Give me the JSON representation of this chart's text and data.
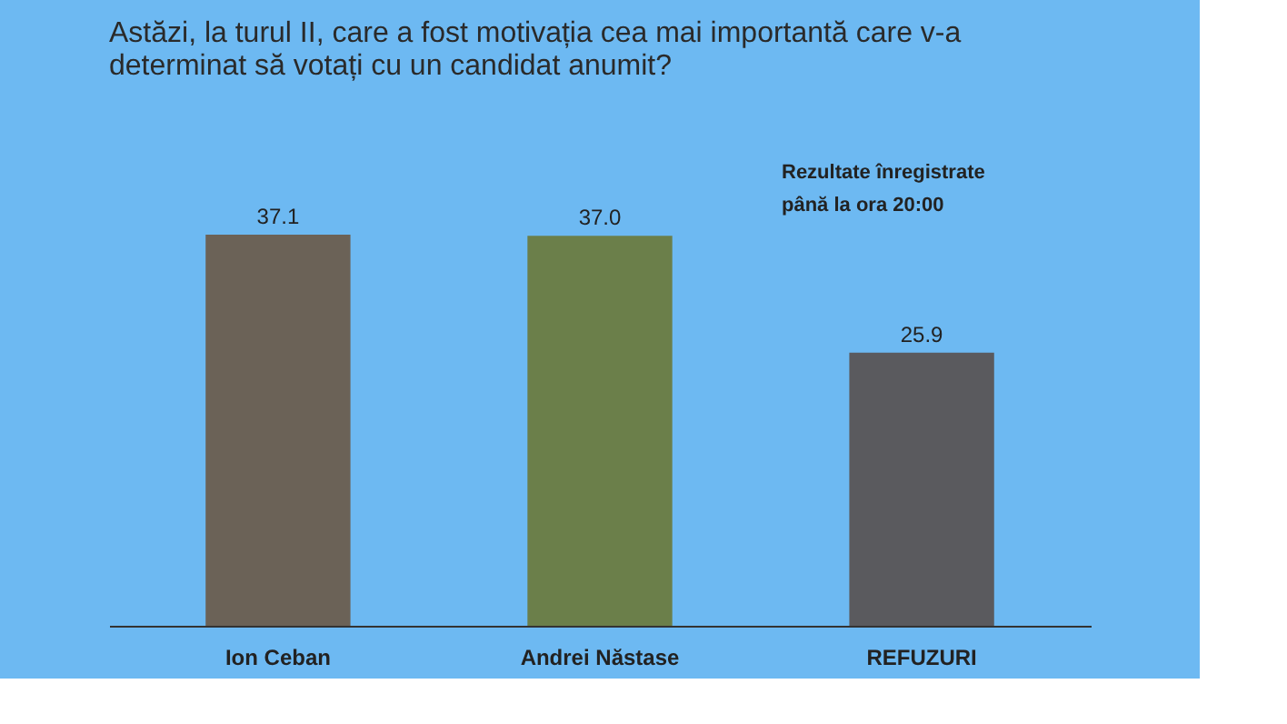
{
  "chart_data": {
    "type": "bar",
    "title": "Astăzi, la turul II, care a fost motivația cea mai importantă care v-a determinat să votați cu un candidat anumit?",
    "categories": [
      "Ion Ceban",
      "Andrei Năstase",
      "REFUZURI"
    ],
    "values": [
      37.1,
      37.0,
      25.9
    ],
    "colors": [
      "#6b6257",
      "#6b7f4a",
      "#5a5a5e"
    ],
    "value_labels": [
      "37.1",
      "37.0",
      "25.9"
    ],
    "annotations": [
      "Rezultate înregistrate\npână la ora 20:00"
    ]
  }
}
